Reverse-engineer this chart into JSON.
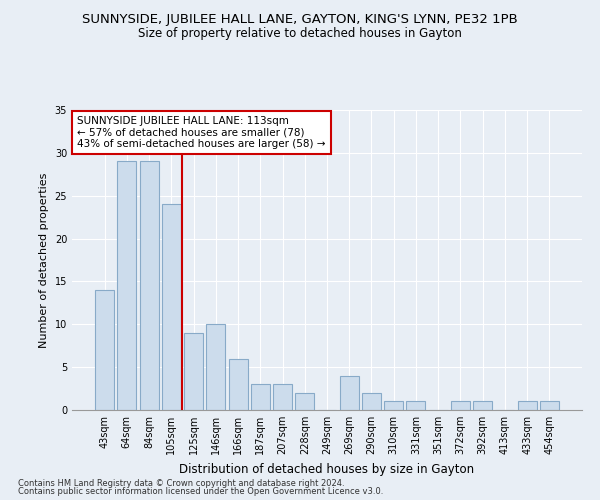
{
  "title_line1": "SUNNYSIDE, JUBILEE HALL LANE, GAYTON, KING'S LYNN, PE32 1PB",
  "title_line2": "Size of property relative to detached houses in Gayton",
  "xlabel": "Distribution of detached houses by size in Gayton",
  "ylabel": "Number of detached properties",
  "categories": [
    "43sqm",
    "64sqm",
    "84sqm",
    "105sqm",
    "125sqm",
    "146sqm",
    "166sqm",
    "187sqm",
    "207sqm",
    "228sqm",
    "249sqm",
    "269sqm",
    "290sqm",
    "310sqm",
    "331sqm",
    "351sqm",
    "372sqm",
    "392sqm",
    "413sqm",
    "433sqm",
    "454sqm"
  ],
  "values": [
    14,
    29,
    29,
    24,
    9,
    10,
    6,
    3,
    3,
    2,
    0,
    4,
    2,
    1,
    1,
    0,
    1,
    1,
    0,
    1,
    1
  ],
  "bar_color": "#ccdcec",
  "bar_edge_color": "#88aac8",
  "reference_line_x": 3.5,
  "annotation_title": "SUNNYSIDE JUBILEE HALL LANE: 113sqm",
  "annotation_line1": "← 57% of detached houses are smaller (78)",
  "annotation_line2": "43% of semi-detached houses are larger (58) →",
  "footer_line1": "Contains HM Land Registry data © Crown copyright and database right 2024.",
  "footer_line2": "Contains public sector information licensed under the Open Government Licence v3.0.",
  "ylim": [
    0,
    35
  ],
  "yticks": [
    0,
    5,
    10,
    15,
    20,
    25,
    30,
    35
  ],
  "background_color": "#e8eef5",
  "plot_bg_color": "#e8eef5",
  "ref_line_color": "#cc0000",
  "annotation_box_color": "#ffffff",
  "annotation_box_edge_color": "#cc0000",
  "title1_fontsize": 9.5,
  "title2_fontsize": 8.5,
  "xlabel_fontsize": 8.5,
  "ylabel_fontsize": 8,
  "tick_fontsize": 7,
  "annotation_fontsize": 7.5,
  "footer_fontsize": 6
}
